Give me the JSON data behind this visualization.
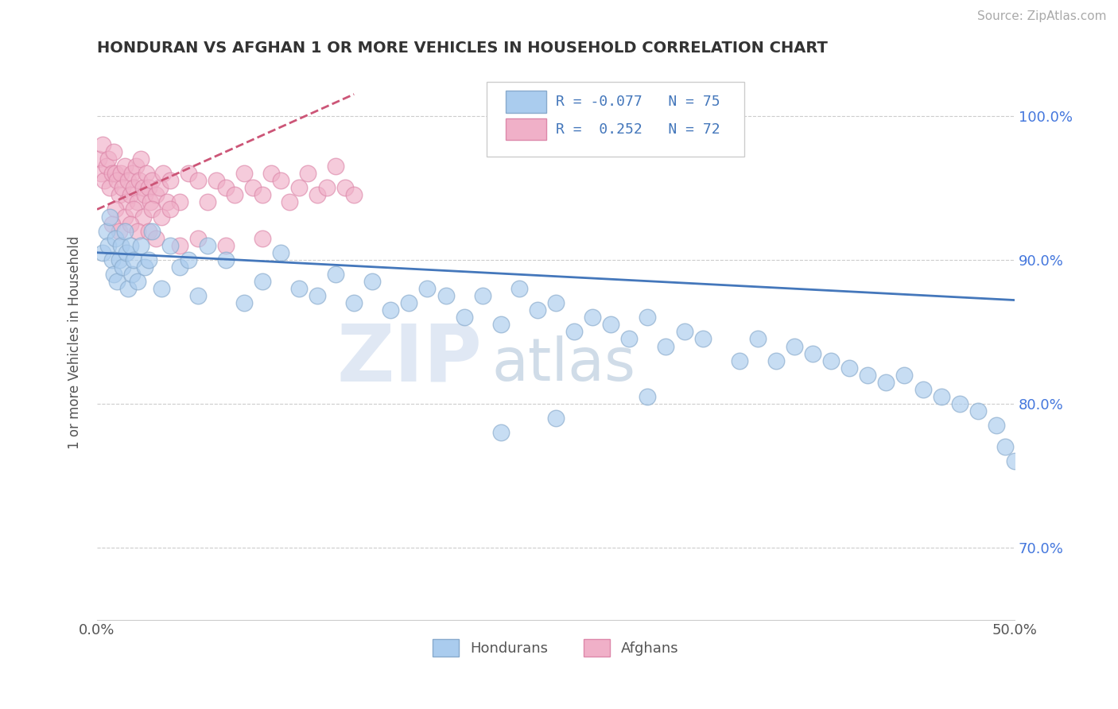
{
  "title": "HONDURAN VS AFGHAN 1 OR MORE VEHICLES IN HOUSEHOLD CORRELATION CHART",
  "source": "Source: ZipAtlas.com",
  "ylabel": "1 or more Vehicles in Household",
  "xlim": [
    0.0,
    50.0
  ],
  "ylim": [
    65.0,
    103.5
  ],
  "xticks": [
    0.0,
    10.0,
    20.0,
    30.0,
    40.0,
    50.0
  ],
  "xticklabels": [
    "0.0%",
    "",
    "",
    "",
    "",
    "50.0%"
  ],
  "yticks": [
    70.0,
    80.0,
    90.0,
    100.0
  ],
  "yticklabels": [
    "70.0%",
    "80.0%",
    "90.0%",
    "100.0%"
  ],
  "honduran_color": "#aaccee",
  "honduran_edge": "#88aacc",
  "afghan_color": "#f0b0c8",
  "afghan_edge": "#dd88aa",
  "honduran_R": -0.077,
  "honduran_N": 75,
  "afghan_R": 0.252,
  "afghan_N": 72,
  "background_color": "#ffffff",
  "grid_color": "#cccccc",
  "watermark_zip": "ZIP",
  "watermark_atlas": "atlas",
  "legend_R1": "R = -0.077",
  "legend_N1": "N = 75",
  "legend_R2": "R =  0.252",
  "legend_N2": "N = 72",
  "hon_trend": [
    90.5,
    87.2
  ],
  "afg_trend_x": [
    0.0,
    14.0
  ],
  "afg_trend_y": [
    93.5,
    101.5
  ],
  "honduran_dots_x": [
    0.3,
    0.5,
    0.6,
    0.7,
    0.8,
    0.9,
    1.0,
    1.1,
    1.2,
    1.3,
    1.4,
    1.5,
    1.6,
    1.7,
    1.8,
    1.9,
    2.0,
    2.2,
    2.4,
    2.6,
    2.8,
    3.0,
    3.5,
    4.0,
    4.5,
    5.0,
    5.5,
    6.0,
    7.0,
    8.0,
    9.0,
    10.0,
    11.0,
    12.0,
    13.0,
    14.0,
    15.0,
    16.0,
    17.0,
    18.0,
    19.0,
    20.0,
    21.0,
    22.0,
    23.0,
    24.0,
    25.0,
    26.0,
    27.0,
    28.0,
    29.0,
    30.0,
    31.0,
    32.0,
    33.0,
    35.0,
    36.0,
    37.0,
    38.0,
    39.0,
    40.0,
    41.0,
    42.0,
    43.0,
    44.0,
    45.0,
    46.0,
    47.0,
    48.0,
    49.0,
    49.5,
    50.0,
    22.0,
    25.0,
    30.0
  ],
  "honduran_dots_y": [
    90.5,
    92.0,
    91.0,
    93.0,
    90.0,
    89.0,
    91.5,
    88.5,
    90.0,
    91.0,
    89.5,
    92.0,
    90.5,
    88.0,
    91.0,
    89.0,
    90.0,
    88.5,
    91.0,
    89.5,
    90.0,
    92.0,
    88.0,
    91.0,
    89.5,
    90.0,
    87.5,
    91.0,
    90.0,
    87.0,
    88.5,
    90.5,
    88.0,
    87.5,
    89.0,
    87.0,
    88.5,
    86.5,
    87.0,
    88.0,
    87.5,
    86.0,
    87.5,
    85.5,
    88.0,
    86.5,
    87.0,
    85.0,
    86.0,
    85.5,
    84.5,
    86.0,
    84.0,
    85.0,
    84.5,
    83.0,
    84.5,
    83.0,
    84.0,
    83.5,
    83.0,
    82.5,
    82.0,
    81.5,
    82.0,
    81.0,
    80.5,
    80.0,
    79.5,
    78.5,
    77.0,
    76.0,
    78.0,
    79.0,
    80.5
  ],
  "afghan_dots_x": [
    0.1,
    0.2,
    0.3,
    0.4,
    0.5,
    0.6,
    0.7,
    0.8,
    0.9,
    1.0,
    1.1,
    1.2,
    1.3,
    1.4,
    1.5,
    1.6,
    1.7,
    1.8,
    1.9,
    2.0,
    2.1,
    2.2,
    2.3,
    2.4,
    2.5,
    2.6,
    2.7,
    2.8,
    2.9,
    3.0,
    3.2,
    3.4,
    3.6,
    3.8,
    4.0,
    4.5,
    5.0,
    5.5,
    6.0,
    6.5,
    7.0,
    7.5,
    8.0,
    8.5,
    9.0,
    9.5,
    10.0,
    10.5,
    11.0,
    11.5,
    12.0,
    12.5,
    13.0,
    13.5,
    14.0,
    1.0,
    1.5,
    2.0,
    2.5,
    3.0,
    3.5,
    4.0,
    0.8,
    1.2,
    1.8,
    2.2,
    2.8,
    3.2,
    4.5,
    5.5,
    7.0,
    9.0
  ],
  "afghan_dots_y": [
    97.0,
    96.0,
    98.0,
    95.5,
    96.5,
    97.0,
    95.0,
    96.0,
    97.5,
    96.0,
    95.5,
    94.5,
    96.0,
    95.0,
    96.5,
    94.0,
    95.5,
    94.5,
    96.0,
    95.0,
    96.5,
    94.0,
    95.5,
    97.0,
    95.0,
    94.5,
    96.0,
    95.0,
    94.0,
    95.5,
    94.5,
    95.0,
    96.0,
    94.0,
    95.5,
    94.0,
    96.0,
    95.5,
    94.0,
    95.5,
    95.0,
    94.5,
    96.0,
    95.0,
    94.5,
    96.0,
    95.5,
    94.0,
    95.0,
    96.0,
    94.5,
    95.0,
    96.5,
    95.0,
    94.5,
    93.5,
    93.0,
    93.5,
    93.0,
    93.5,
    93.0,
    93.5,
    92.5,
    92.0,
    92.5,
    92.0,
    92.0,
    91.5,
    91.0,
    91.5,
    91.0,
    91.5
  ]
}
